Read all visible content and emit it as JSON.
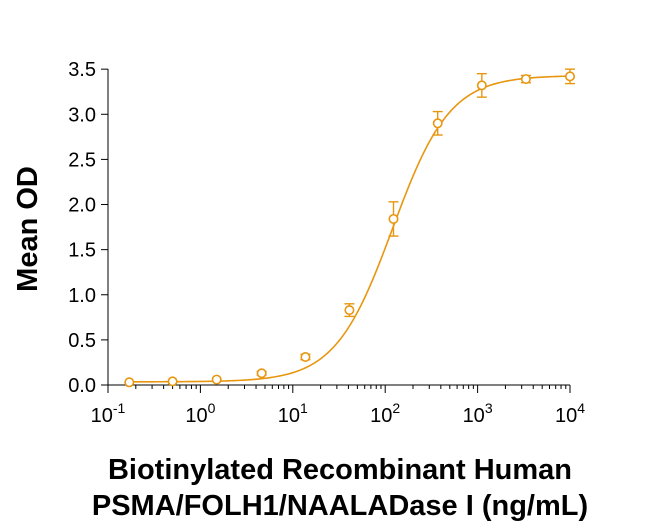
{
  "chart_data": {
    "type": "scatter",
    "title": "",
    "xlabel_lines": [
      "Biotinylated Recombinant Human",
      "PSMA/FOLH1/NAALADase I (ng/mL)"
    ],
    "ylabel": "Mean OD",
    "x_scale": "log",
    "xlim": [
      0.1,
      10000
    ],
    "ylim": [
      0.0,
      3.6
    ],
    "x_ticks": [
      {
        "value": 0.1,
        "base": "10",
        "exp": "-1"
      },
      {
        "value": 1,
        "base": "10",
        "exp": "0"
      },
      {
        "value": 10,
        "base": "10",
        "exp": "1"
      },
      {
        "value": 100,
        "base": "10",
        "exp": "2"
      },
      {
        "value": 1000,
        "base": "10",
        "exp": "3"
      },
      {
        "value": 10000,
        "base": "10",
        "exp": "4"
      }
    ],
    "y_ticks": [
      {
        "value": 0.0,
        "label": "0.0"
      },
      {
        "value": 0.5,
        "label": "0.5"
      },
      {
        "value": 1.0,
        "label": "1.0"
      },
      {
        "value": 1.5,
        "label": "1.5"
      },
      {
        "value": 2.0,
        "label": "2.0"
      },
      {
        "value": 2.5,
        "label": "2.5"
      },
      {
        "value": 3.0,
        "label": "3.0"
      },
      {
        "value": 3.5,
        "label": "3.5"
      }
    ],
    "grid": false,
    "series": [
      {
        "color": "#e8960f",
        "marker": "open-circle",
        "fit": "4PL sigmoidal",
        "fit_params": {
          "bottom": 0.035,
          "top": 3.43,
          "ec50": 120,
          "hill": 1.4
        },
        "points": [
          {
            "x": 0.17,
            "y": 0.03,
            "err": 0.01
          },
          {
            "x": 0.5,
            "y": 0.04,
            "err": 0.01
          },
          {
            "x": 1.5,
            "y": 0.06,
            "err": 0.01
          },
          {
            "x": 4.6,
            "y": 0.13,
            "err": 0.02
          },
          {
            "x": 13.7,
            "y": 0.31,
            "err": 0.03
          },
          {
            "x": 41,
            "y": 0.83,
            "err": 0.07
          },
          {
            "x": 123,
            "y": 1.84,
            "err": 0.19
          },
          {
            "x": 370,
            "y": 2.9,
            "err": 0.13
          },
          {
            "x": 1111,
            "y": 3.32,
            "err": 0.13
          },
          {
            "x": 3333,
            "y": 3.39,
            "err": 0.04
          },
          {
            "x": 10000,
            "y": 3.42,
            "err": 0.08
          }
        ]
      }
    ]
  }
}
